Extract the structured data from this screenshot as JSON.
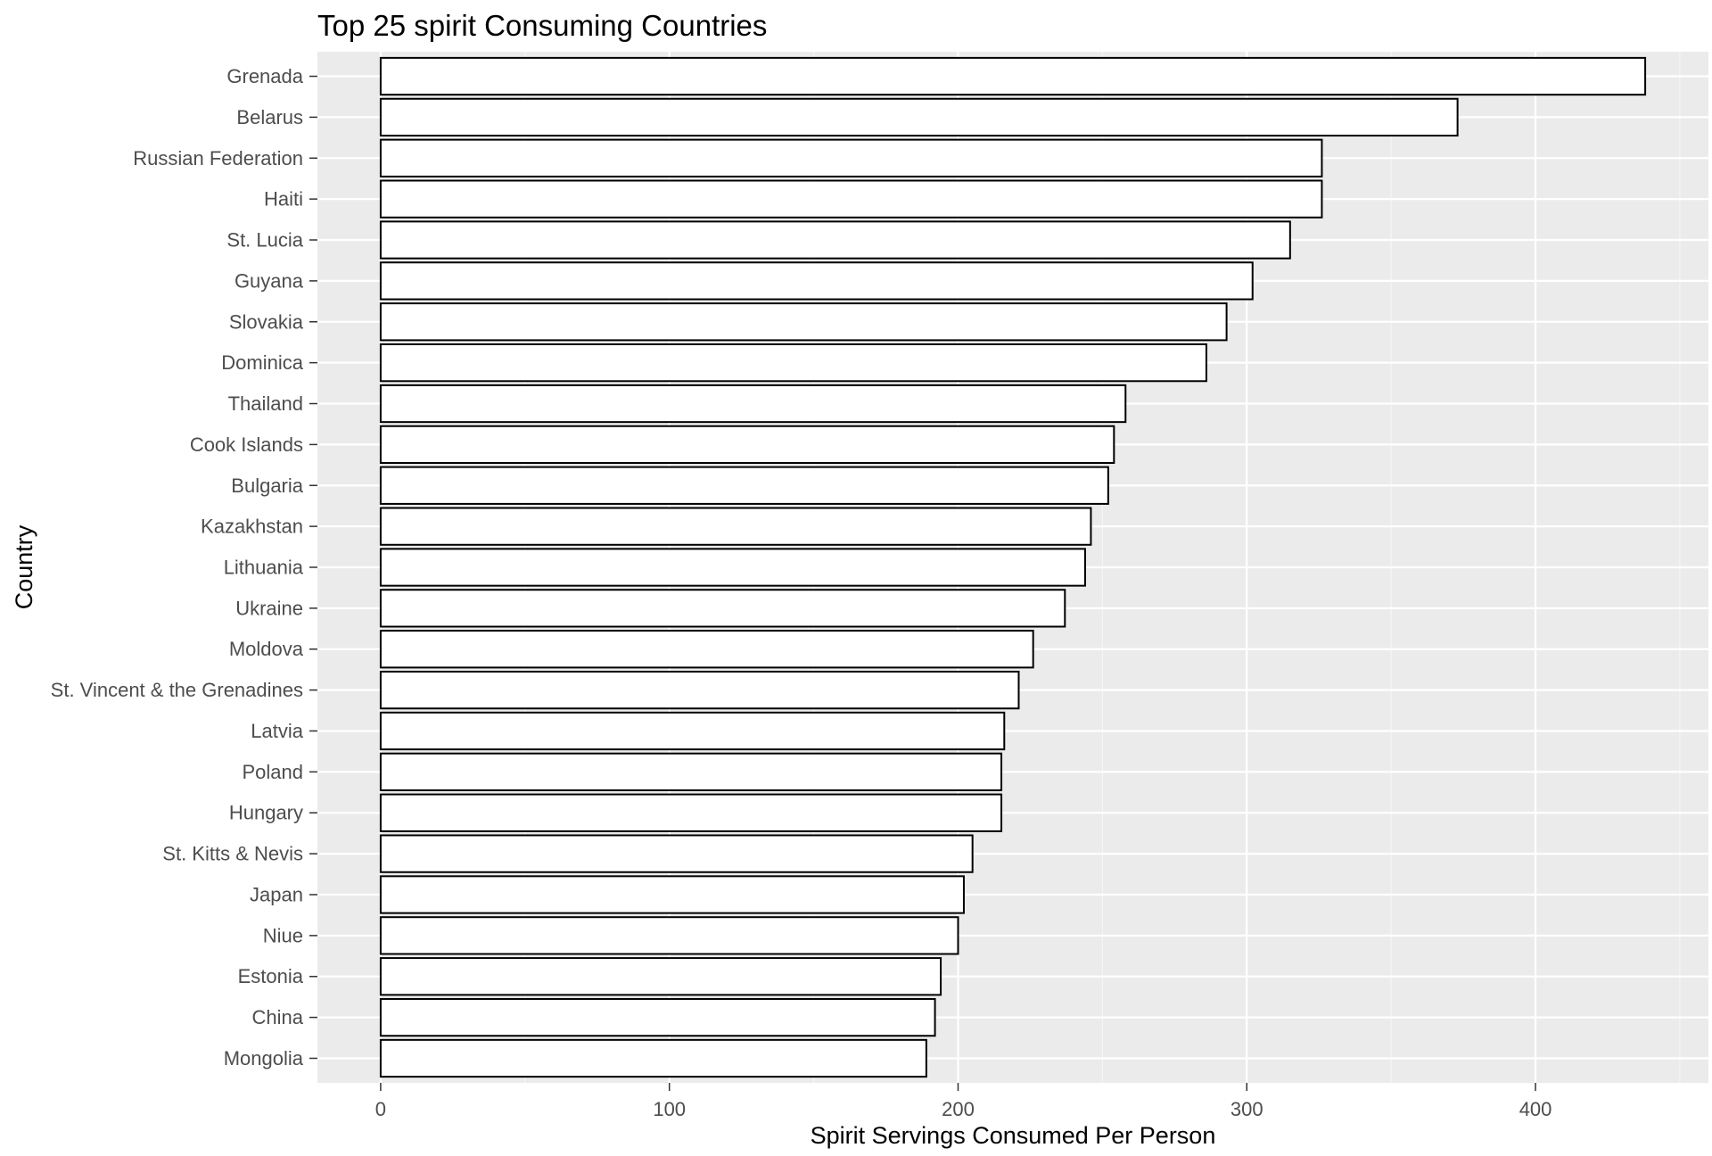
{
  "chart_data": {
    "type": "bar",
    "orientation": "horizontal",
    "title": "Top 25 spirit Consuming Countries",
    "xlabel": "Spirit Servings Consumed Per Person",
    "ylabel": "Country",
    "categories": [
      "Grenada",
      "Belarus",
      "Russian Federation",
      "Haiti",
      "St. Lucia",
      "Guyana",
      "Slovakia",
      "Dominica",
      "Thailand",
      "Cook Islands",
      "Bulgaria",
      "Kazakhstan",
      "Lithuania",
      "Ukraine",
      "Moldova",
      "St. Vincent & the Grenadines",
      "Latvia",
      "Poland",
      "Hungary",
      "St. Kitts & Nevis",
      "Japan",
      "Niue",
      "Estonia",
      "China",
      "Mongolia"
    ],
    "values": [
      438,
      373,
      326,
      326,
      315,
      302,
      293,
      286,
      258,
      254,
      252,
      246,
      244,
      237,
      226,
      221,
      216,
      215,
      215,
      205,
      202,
      200,
      194,
      192,
      189
    ],
    "xticks": [
      0,
      100,
      200,
      300,
      400
    ],
    "xlim": [
      -21.9,
      459.9
    ],
    "grid": true,
    "legend": "none",
    "colors": {
      "panel_background": "#ebebeb",
      "grid_major": "#ffffff",
      "grid_minor": "#f5f5f5",
      "bar_fill": "#ffffff",
      "bar_outline": "#000000",
      "tick_text": "#4d4d4d",
      "tick_mark": "#333333",
      "title_text": "#000000"
    }
  }
}
